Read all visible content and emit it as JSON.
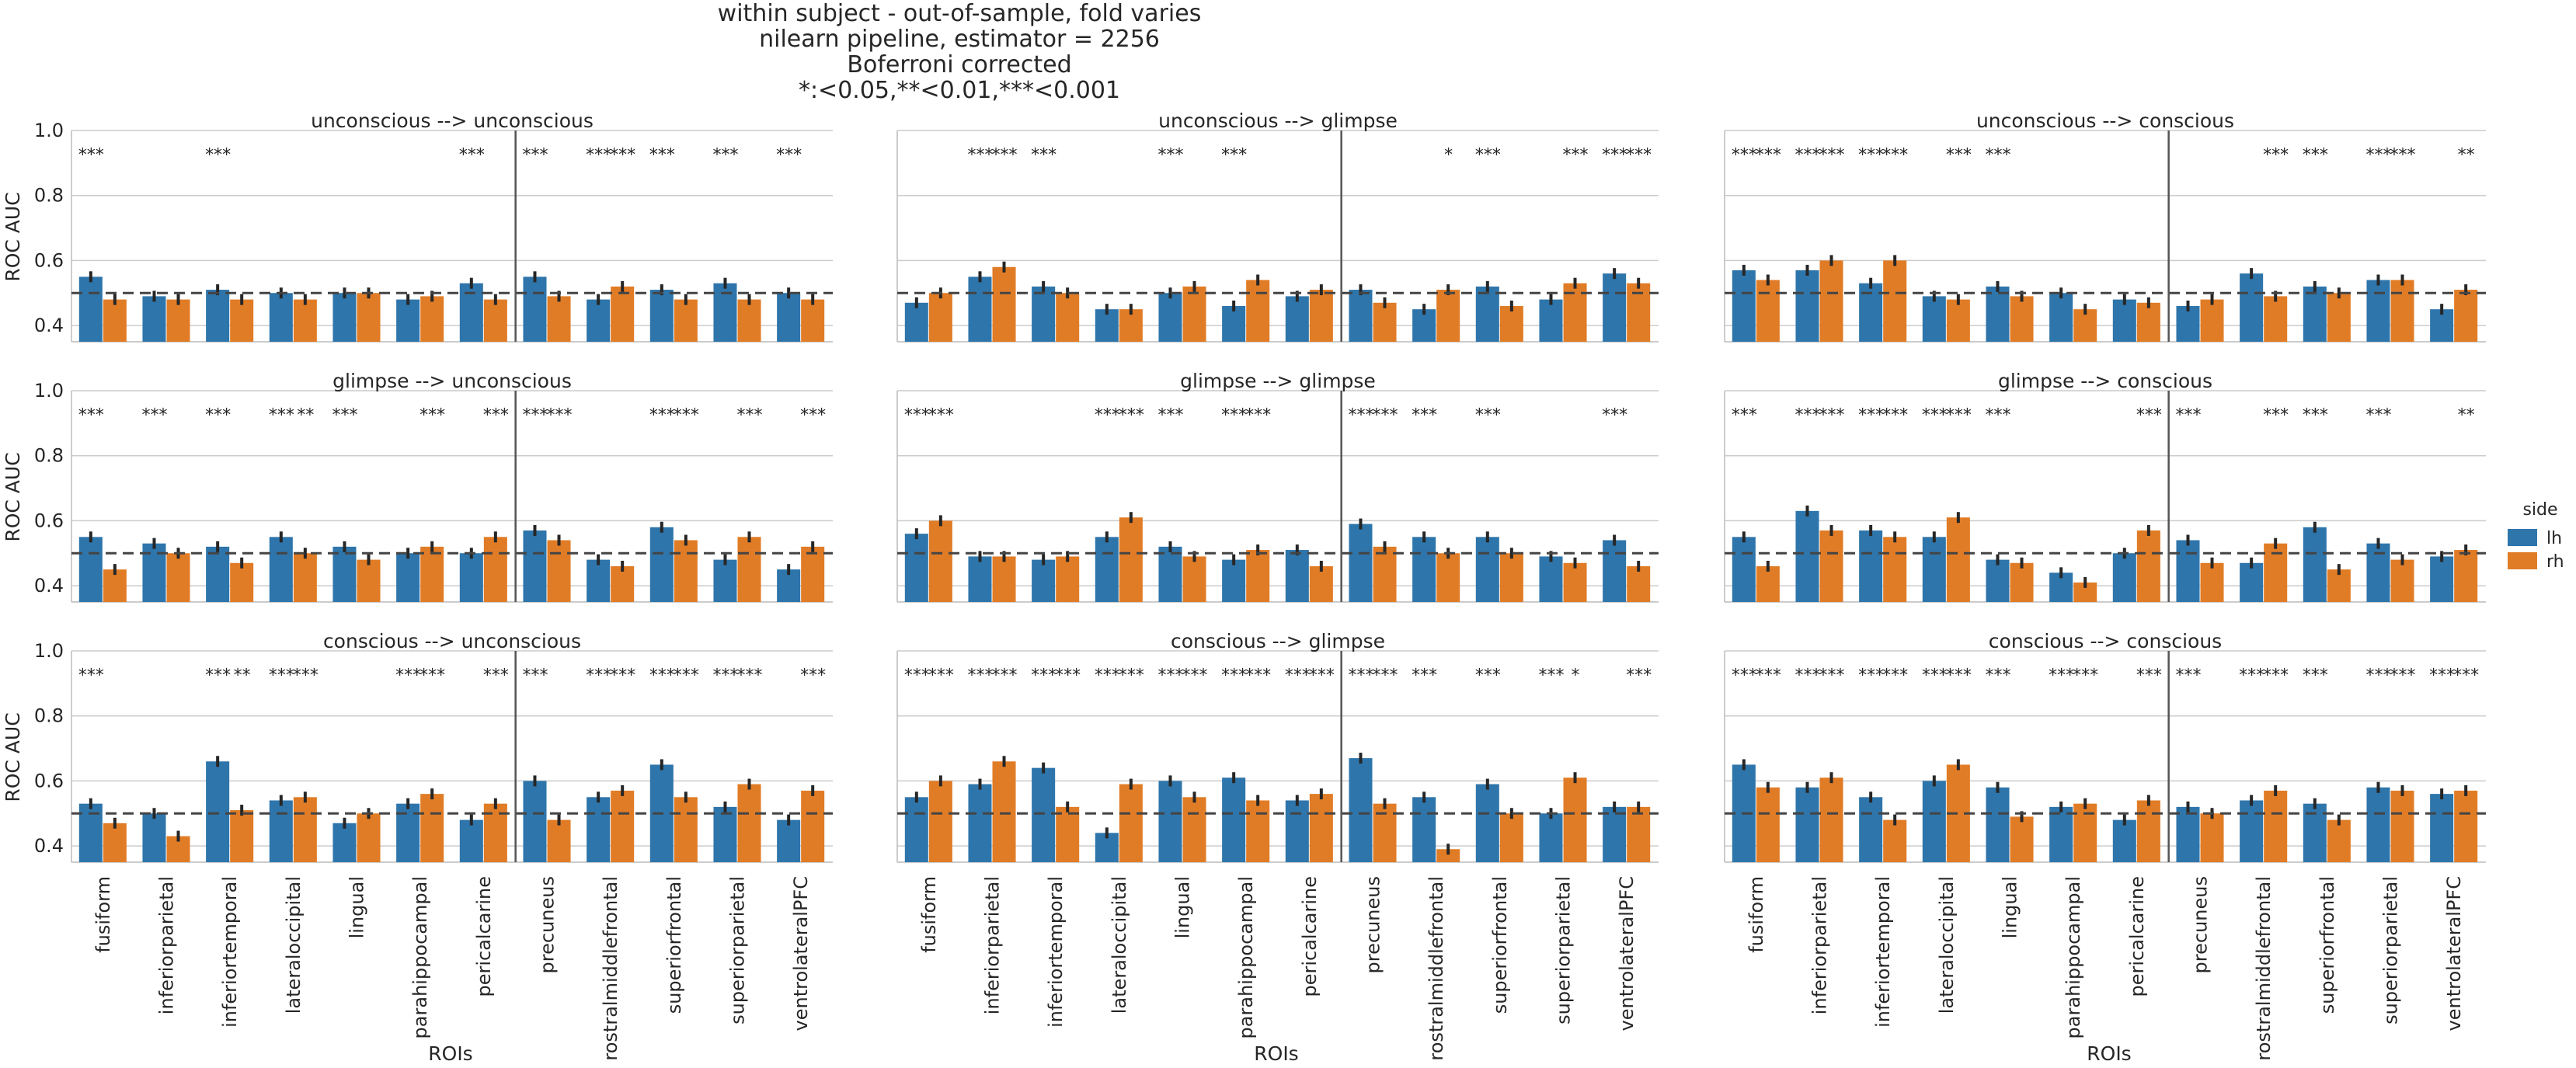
{
  "title_lines": [
    "within subject - out-of-sample, fold varies",
    "nilearn pipeline, estimator = 2256",
    "Boferroni corrected",
    "*:<0.05,**<0.01,***<0.001"
  ],
  "colors": {
    "lh": "#2e75ab",
    "rh": "#e17c26",
    "bar_dark_lh": "#2a6a99",
    "grid": "#cccccc",
    "divider": "#555555",
    "chance": "#444444",
    "text": "#262626",
    "errorbar": "#262626"
  },
  "legend": {
    "title": "side",
    "entries": [
      {
        "key": "lh",
        "label": "lh"
      },
      {
        "key": "rh",
        "label": "rh"
      }
    ]
  },
  "row_labels": [
    "ROC AUC",
    "ROC AUC",
    "ROC AUC"
  ],
  "col_labels": [
    "ROIs",
    "ROIs",
    "ROIs"
  ],
  "chart_data": {
    "type": "bar",
    "grid": true,
    "legend_placement": "right",
    "ylim": [
      0.35,
      1.0
    ],
    "yticks": [
      0.4,
      0.6,
      0.8,
      1.0
    ],
    "yticklabels": [
      "0.4",
      "0.6",
      "0.8",
      "1.0"
    ],
    "chance_level": 0.5,
    "categories": [
      "fusiform",
      "inferiorparietal",
      "inferiortemporal",
      "lateraloccipital",
      "lingual",
      "parahippocampal",
      "pericalcarine",
      "precuneus",
      "rostralmiddlefrontal",
      "superiorfrontal",
      "superiorparietal",
      "ventrolateralPFC"
    ],
    "series_names": [
      "lh",
      "rh"
    ],
    "panels": [
      {
        "title": "unconscious --> unconscious",
        "lh": [
          0.55,
          0.49,
          0.51,
          0.5,
          0.5,
          0.48,
          0.53,
          0.55,
          0.48,
          0.51,
          0.53,
          0.5
        ],
        "rh": [
          0.48,
          0.48,
          0.48,
          0.48,
          0.5,
          0.49,
          0.48,
          0.49,
          0.52,
          0.48,
          0.48,
          0.48
        ],
        "sig_lh": [
          "***",
          "",
          "***",
          "",
          "",
          "",
          "***",
          "***",
          "***",
          "***",
          "***",
          "***"
        ],
        "sig_rh": [
          "",
          "",
          "",
          "",
          "",
          "",
          "",
          "",
          "***",
          "",
          "",
          ""
        ]
      },
      {
        "title": "unconscious --> glimpse",
        "lh": [
          0.47,
          0.55,
          0.52,
          0.45,
          0.5,
          0.46,
          0.49,
          0.51,
          0.45,
          0.52,
          0.48,
          0.56
        ],
        "rh": [
          0.5,
          0.58,
          0.5,
          0.45,
          0.52,
          0.54,
          0.51,
          0.47,
          0.51,
          0.46,
          0.53,
          0.53
        ],
        "sig_lh": [
          "",
          "***",
          "***",
          "",
          "***",
          "***",
          "",
          "",
          "",
          "***",
          "",
          "***"
        ],
        "sig_rh": [
          "",
          "***",
          "",
          "",
          "",
          "",
          "",
          "",
          "*",
          "",
          "***",
          "***"
        ]
      },
      {
        "title": "unconscious --> conscious",
        "lh": [
          0.57,
          0.57,
          0.53,
          0.49,
          0.52,
          0.5,
          0.48,
          0.46,
          0.56,
          0.52,
          0.54,
          0.45
        ],
        "rh": [
          0.54,
          0.6,
          0.6,
          0.48,
          0.49,
          0.45,
          0.47,
          0.48,
          0.49,
          0.5,
          0.54,
          0.51
        ],
        "sig_lh": [
          "***",
          "***",
          "***",
          "",
          "***",
          "",
          "",
          "",
          "",
          "***",
          "***",
          ""
        ],
        "sig_rh": [
          "***",
          "***",
          "***",
          "***",
          "",
          "",
          "",
          "",
          "***",
          "",
          "***",
          "**"
        ]
      },
      {
        "title": "glimpse --> unconscious",
        "lh": [
          0.55,
          0.53,
          0.52,
          0.55,
          0.52,
          0.5,
          0.5,
          0.57,
          0.48,
          0.58,
          0.48,
          0.45
        ],
        "rh": [
          0.45,
          0.5,
          0.47,
          0.5,
          0.48,
          0.52,
          0.55,
          0.54,
          0.46,
          0.54,
          0.55,
          0.52
        ],
        "sig_lh": [
          "***",
          "***",
          "***",
          "***",
          "***",
          "",
          "",
          "***",
          "",
          "***",
          "",
          ""
        ],
        "sig_rh": [
          "",
          "",
          "",
          "**",
          "",
          "***",
          "***",
          "***",
          "",
          "***",
          "***",
          "***"
        ]
      },
      {
        "title": "glimpse --> glimpse",
        "lh": [
          0.56,
          0.49,
          0.48,
          0.55,
          0.52,
          0.48,
          0.51,
          0.59,
          0.55,
          0.55,
          0.49,
          0.54
        ],
        "rh": [
          0.6,
          0.49,
          0.49,
          0.61,
          0.49,
          0.51,
          0.46,
          0.52,
          0.5,
          0.5,
          0.47,
          0.46
        ],
        "sig_lh": [
          "***",
          "",
          "",
          "***",
          "***",
          "***",
          "",
          "***",
          "***",
          "***",
          "",
          "***"
        ],
        "sig_rh": [
          "***",
          "",
          "",
          "***",
          "",
          "***",
          "",
          "***",
          "",
          "",
          "",
          ""
        ]
      },
      {
        "title": "glimpse --> conscious",
        "lh": [
          0.55,
          0.63,
          0.57,
          0.55,
          0.48,
          0.44,
          0.5,
          0.54,
          0.47,
          0.58,
          0.53,
          0.49
        ],
        "rh": [
          0.46,
          0.57,
          0.55,
          0.61,
          0.47,
          0.41,
          0.57,
          0.47,
          0.53,
          0.45,
          0.48,
          0.51
        ],
        "sig_lh": [
          "***",
          "***",
          "***",
          "***",
          "***",
          "",
          "",
          "***",
          "",
          "***",
          "***",
          ""
        ],
        "sig_rh": [
          "",
          "***",
          "***",
          "***",
          "",
          "",
          "***",
          "",
          "***",
          "",
          "",
          "**"
        ]
      },
      {
        "title": "conscious --> unconscious",
        "lh": [
          0.53,
          0.5,
          0.66,
          0.54,
          0.47,
          0.53,
          0.48,
          0.6,
          0.55,
          0.65,
          0.52,
          0.48
        ],
        "rh": [
          0.47,
          0.43,
          0.51,
          0.55,
          0.5,
          0.56,
          0.53,
          0.48,
          0.57,
          0.55,
          0.59,
          0.57
        ],
        "sig_lh": [
          "***",
          "",
          "***",
          "***",
          "",
          "***",
          "",
          "***",
          "***",
          "***",
          "***",
          ""
        ],
        "sig_rh": [
          "",
          "",
          "**",
          "***",
          "",
          "***",
          "***",
          "",
          "***",
          "***",
          "***",
          "***"
        ]
      },
      {
        "title": "conscious --> glimpse",
        "lh": [
          0.55,
          0.59,
          0.64,
          0.44,
          0.6,
          0.61,
          0.54,
          0.67,
          0.55,
          0.59,
          0.5,
          0.52
        ],
        "rh": [
          0.6,
          0.66,
          0.52,
          0.59,
          0.55,
          0.54,
          0.56,
          0.53,
          0.39,
          0.5,
          0.61,
          0.52
        ],
        "sig_lh": [
          "***",
          "***",
          "***",
          "***",
          "***",
          "***",
          "***",
          "***",
          "***",
          "***",
          "***",
          ""
        ],
        "sig_rh": [
          "***",
          "***",
          "***",
          "***",
          "***",
          "***",
          "***",
          "***",
          "",
          "",
          "*",
          "***"
        ]
      },
      {
        "title": "conscious --> conscious",
        "lh": [
          0.65,
          0.58,
          0.55,
          0.6,
          0.58,
          0.52,
          0.48,
          0.52,
          0.54,
          0.53,
          0.58,
          0.56
        ],
        "rh": [
          0.58,
          0.61,
          0.48,
          0.65,
          0.49,
          0.53,
          0.54,
          0.5,
          0.57,
          0.48,
          0.57,
          0.57
        ],
        "sig_lh": [
          "***",
          "***",
          "***",
          "***",
          "***",
          "***",
          "",
          "***",
          "***",
          "***",
          "***",
          "***"
        ],
        "sig_rh": [
          "***",
          "***",
          "***",
          "***",
          "",
          "***",
          "***",
          "",
          "***",
          "",
          "***",
          "***"
        ]
      }
    ]
  }
}
